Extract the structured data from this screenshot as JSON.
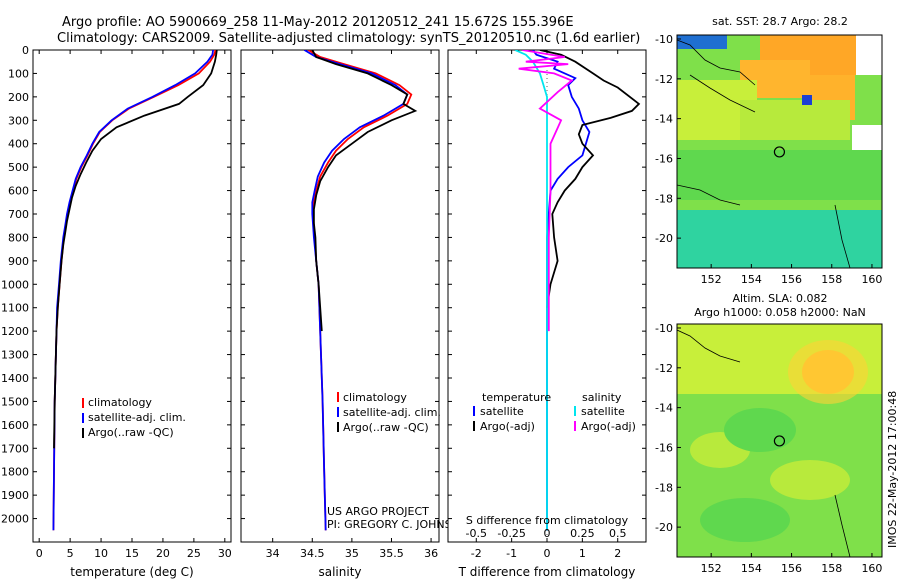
{
  "header": {
    "line1": "Argo profile: AO 5900669_258 11-May-2012 20120512_241 15.672S 155.396E",
    "line2": "Climatology: CARS2009. Satellite-adjusted climatology: synTS_20120510.nc (1.6d earlier)"
  },
  "credit": {
    "line1": "US ARGO PROJECT",
    "line2": "PI: GREGORY C. JOHNSON"
  },
  "side_stamp": "IMOS 22-May-2012 17:00:48",
  "colors": {
    "clim": "#ff0000",
    "sat": "#0000ff",
    "argo": "#000000",
    "sal_sat": "#00e5ee",
    "sal_argo": "#ff00ff",
    "map_green": "#7fe04a",
    "map_yellow": "#c8ef3a",
    "map_orange": "#ffa726",
    "map_cyan": "#2fd3a0"
  },
  "chart_data": [
    {
      "type": "line",
      "panel": "temperature",
      "xlabel": "temperature (deg C)",
      "ylabel": "",
      "xlim": [
        -1,
        31
      ],
      "ylim": [
        2100,
        0
      ],
      "xticks": [
        0,
        5,
        10,
        15,
        20,
        25,
        30
      ],
      "yticks": [
        0,
        100,
        200,
        300,
        400,
        500,
        600,
        700,
        800,
        900,
        1000,
        1100,
        1200,
        1300,
        1400,
        1500,
        1600,
        1700,
        1800,
        1900,
        2000
      ],
      "legend": [
        "climatology",
        "satellite-adj. clim.",
        "Argo(..raw -QC)"
      ],
      "legend_position": "lower-center",
      "series": [
        {
          "name": "climatology",
          "color": "red",
          "x": [
            28.5,
            28.3,
            27.6,
            25.8,
            22.5,
            18.5,
            14.5,
            11.8,
            9.8,
            8.7,
            7.8,
            6.8,
            6.0,
            5.5,
            5.0,
            4.6,
            4.3,
            4.0,
            3.6,
            3.3,
            3.0,
            2.8,
            2.7,
            2.6,
            2.5,
            2.4,
            2.3
          ],
          "y": [
            0,
            20,
            50,
            100,
            150,
            200,
            250,
            300,
            350,
            400,
            450,
            500,
            550,
            600,
            650,
            700,
            750,
            800,
            900,
            1000,
            1100,
            1200,
            1300,
            1400,
            1500,
            1800,
            2050
          ]
        },
        {
          "name": "satellite-adj. clim.",
          "color": "blue",
          "x": [
            28.1,
            28.0,
            27.2,
            25.2,
            22.0,
            18.3,
            14.3,
            11.7,
            9.7,
            8.6,
            7.7,
            6.7,
            5.9,
            5.4,
            4.9,
            4.5,
            4.2,
            3.9,
            3.5,
            3.2,
            2.9,
            2.8,
            2.7,
            2.6,
            2.5,
            2.4,
            2.3
          ],
          "y": [
            0,
            20,
            50,
            100,
            150,
            200,
            250,
            300,
            350,
            400,
            450,
            500,
            550,
            600,
            650,
            700,
            750,
            800,
            900,
            1000,
            1100,
            1200,
            1300,
            1400,
            1500,
            1800,
            2050
          ]
        },
        {
          "name": "Argo(..raw -QC)",
          "color": "black",
          "x": [
            28.7,
            28.6,
            28.4,
            27.8,
            26.5,
            24.0,
            22.6,
            17.0,
            12.5,
            10.0,
            8.6,
            7.6,
            6.7,
            5.9,
            5.3,
            4.9,
            4.5,
            4.2,
            3.9,
            3.6,
            3.3,
            3.0,
            2.8,
            2.7,
            2.6,
            2.5,
            2.4
          ],
          "y": [
            0,
            20,
            50,
            100,
            150,
            200,
            230,
            280,
            330,
            380,
            430,
            480,
            530,
            580,
            630,
            680,
            730,
            780,
            830,
            900,
            1000,
            1100,
            1200,
            1300,
            1400,
            1500,
            1700
          ]
        }
      ]
    },
    {
      "type": "line",
      "panel": "salinity",
      "xlabel": "salinity",
      "ylabel": "",
      "xlim": [
        33.6,
        36.1
      ],
      "ylim": [
        2100,
        0
      ],
      "xticks": [
        34,
        34.5,
        35,
        35.5,
        36
      ],
      "legend": [
        "climatology",
        "satellite-adj. clim.",
        "Argo(..raw -QC)"
      ],
      "legend_position": "lower-center",
      "series": [
        {
          "name": "climatology",
          "color": "red",
          "x": [
            34.45,
            34.6,
            34.9,
            35.3,
            35.6,
            35.75,
            35.7,
            35.45,
            35.15,
            34.95,
            34.8,
            34.7,
            34.6,
            34.55,
            34.52,
            34.51,
            34.52,
            34.53,
            34.55,
            34.58,
            34.6,
            34.63,
            34.65,
            34.67
          ],
          "y": [
            0,
            30,
            60,
            100,
            150,
            190,
            230,
            280,
            330,
            380,
            430,
            480,
            540,
            600,
            650,
            700,
            750,
            800,
            900,
            1000,
            1200,
            1500,
            1800,
            2050
          ]
        },
        {
          "name": "satellite-adj. clim.",
          "color": "blue",
          "x": [
            34.4,
            34.55,
            34.85,
            35.25,
            35.55,
            35.7,
            35.65,
            35.4,
            35.1,
            34.9,
            34.75,
            34.65,
            34.57,
            34.53,
            34.5,
            34.5,
            34.51,
            34.52,
            34.55,
            34.58,
            34.6,
            34.63,
            34.65,
            34.67
          ],
          "y": [
            0,
            30,
            60,
            100,
            150,
            190,
            230,
            280,
            330,
            380,
            430,
            480,
            540,
            600,
            650,
            700,
            750,
            800,
            900,
            1000,
            1200,
            1500,
            1800,
            2050
          ]
        },
        {
          "name": "Argo(..raw -QC)",
          "color": "black",
          "x": [
            34.5,
            34.55,
            34.8,
            35.2,
            35.5,
            35.7,
            35.65,
            35.8,
            35.5,
            35.2,
            35.0,
            34.8,
            34.7,
            34.6,
            34.55,
            34.52,
            34.52,
            34.54,
            34.55,
            34.58,
            34.6,
            34.62
          ],
          "y": [
            0,
            30,
            60,
            100,
            150,
            190,
            230,
            260,
            300,
            350,
            400,
            450,
            500,
            560,
            620,
            680,
            740,
            800,
            900,
            1000,
            1100,
            1200
          ]
        }
      ]
    },
    {
      "type": "line",
      "panel": "difference",
      "xlabel": "T difference from climatology",
      "x2label": "S difference from climatology",
      "xlim": [
        -2.8,
        2.8
      ],
      "ylim": [
        2100,
        0
      ],
      "xticks": [
        -2,
        -1,
        0,
        1,
        2
      ],
      "x2ticks": [
        -0.5,
        -0.25,
        0,
        0.25,
        0.5
      ],
      "legend_headers": [
        "temperature",
        "salinity"
      ],
      "legend": [
        "satellite",
        "Argo(-adj)",
        "satellite",
        "Argo(-adj)"
      ],
      "series": [
        {
          "name": "temperature satellite",
          "color": "blue",
          "x": [
            -0.4,
            -0.3,
            0.3,
            0.2,
            0.8,
            0.6,
            0.7,
            0.9,
            1.0,
            1.2,
            1.1,
            1.0,
            0.6,
            0.3,
            0.1,
            0.05,
            0.0,
            0.0,
            0.0
          ],
          "y": [
            0,
            20,
            50,
            80,
            120,
            150,
            200,
            250,
            300,
            350,
            400,
            450,
            500,
            550,
            600,
            700,
            800,
            1000,
            2050
          ]
        },
        {
          "name": "temperature Argo(-adj)",
          "color": "black",
          "x": [
            -0.2,
            0.4,
            0.8,
            1.3,
            1.6,
            2.0,
            2.6,
            2.4,
            1.8,
            1.0,
            0.9,
            1.0,
            1.3,
            1.0,
            0.8,
            0.5,
            0.3,
            0.15,
            0.2,
            0.3,
            0.1,
            0.0
          ],
          "y": [
            0,
            20,
            50,
            100,
            130,
            160,
            230,
            260,
            290,
            320,
            360,
            400,
            450,
            500,
            550,
            600,
            650,
            700,
            800,
            900,
            1000,
            1100
          ]
        },
        {
          "name": "salinity satellite",
          "color": "cyan",
          "x": [
            -0.9,
            -0.6,
            -0.4,
            -0.2,
            -0.1,
            0.0,
            0.0,
            0.0,
            0.0
          ],
          "y": [
            0,
            20,
            50,
            100,
            150,
            200,
            400,
            800,
            2050
          ]
        },
        {
          "name": "salinity Argo(-adj)",
          "color": "magenta",
          "x": [
            -0.7,
            0.5,
            -0.6,
            0.6,
            -0.8,
            0.2,
            0.7,
            0.3,
            -0.2,
            0.4,
            0.1,
            0.1,
            0.05,
            0.05,
            0.05
          ],
          "y": [
            0,
            30,
            50,
            60,
            80,
            100,
            130,
            180,
            250,
            300,
            400,
            600,
            800,
            1000,
            1200
          ]
        }
      ]
    },
    {
      "type": "heatmap",
      "panel": "sst-map",
      "title": "sat. SST: 28.7 Argo: 28.2",
      "xticks": [
        152,
        154,
        156,
        158,
        160
      ],
      "yticks": [
        -10,
        -12,
        -14,
        -16,
        -18,
        -20
      ],
      "xlim": [
        150.3,
        160.5
      ],
      "ylim": [
        -21.5,
        -9.8
      ],
      "marker": {
        "lon": 155.396,
        "lat": -15.672
      }
    },
    {
      "type": "heatmap",
      "panel": "sla-map",
      "title_line1": "Altim. SLA: 0.082",
      "title_line2": "Argo h1000: 0.058 h2000: NaN",
      "xticks": [
        152,
        154,
        156,
        158,
        160
      ],
      "yticks": [
        -10,
        -12,
        -14,
        -16,
        -18,
        -20
      ],
      "xlim": [
        150.3,
        160.5
      ],
      "ylim": [
        -21.5,
        -9.8
      ],
      "marker": {
        "lon": 155.396,
        "lat": -15.672
      }
    }
  ]
}
